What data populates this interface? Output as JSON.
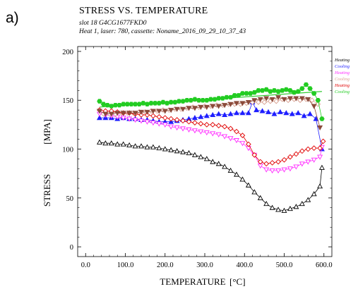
{
  "panel_label": "a)",
  "chart_data": {
    "type": "scatter",
    "title": "STRESS VS. TEMPERATURE",
    "subtitle_lines": [
      "slot 18 G4CG1677FKD0",
      "Heat 1, laser: 780, cassette: Noname_2016_09_29_10_37_43"
    ],
    "xlabel": "TEMPERATURE",
    "xunit": "[°C]",
    "ylabel": "STRESS",
    "yunit": "[MPA]",
    "xlim": [
      -20,
      620
    ],
    "ylim": [
      -10,
      205
    ],
    "xticks": [
      0,
      100,
      200,
      300,
      400,
      500,
      600
    ],
    "xtick_labels": [
      "0.0",
      "100.0",
      "200.0",
      "300.0",
      "400.0",
      "500.0",
      "600.0"
    ],
    "yticks": [
      0,
      50,
      100,
      150,
      200
    ],
    "ytick_labels": [
      "0",
      "50",
      "100",
      "150",
      "200"
    ],
    "grid": false,
    "legend_position": "right",
    "series": [
      {
        "name": "Heating",
        "color": "#000000",
        "marker": "triangle-up-open",
        "x": [
          35,
          50,
          65,
          80,
          95,
          110,
          125,
          140,
          155,
          170,
          185,
          200,
          215,
          230,
          245,
          260,
          275,
          290,
          305,
          320,
          335,
          350,
          365,
          380,
          395,
          410,
          425,
          440,
          455,
          470,
          485,
          500,
          515,
          530,
          545,
          560,
          575,
          590,
          595
        ],
        "y": [
          107,
          106,
          106,
          105,
          105,
          104,
          103,
          103,
          102,
          102,
          101,
          100,
          99,
          98,
          97,
          96,
          94,
          92,
          90,
          87,
          85,
          82,
          78,
          74,
          69,
          63,
          56,
          50,
          44,
          40,
          38,
          37,
          39,
          41,
          44,
          48,
          54,
          62,
          81
        ]
      },
      {
        "name": "Cooling",
        "color": "#1e1eff",
        "marker": "triangle-up-filled",
        "x": [
          595,
          580,
          565,
          550,
          535,
          520,
          505,
          490,
          475,
          460,
          445,
          430,
          420,
          410,
          395,
          380,
          365,
          350,
          335,
          320,
          305,
          290,
          275,
          260,
          245,
          230,
          215,
          200,
          185,
          170,
          155,
          140,
          125,
          110,
          95,
          80,
          65,
          50,
          35
        ],
        "y": [
          100,
          131,
          136,
          134,
          137,
          136,
          137,
          138,
          136,
          138,
          139,
          140,
          148,
          137,
          137,
          137,
          136,
          135,
          136,
          135,
          134,
          133,
          132,
          131,
          130,
          129,
          128,
          128,
          128,
          129,
          130,
          130,
          131,
          131,
          132,
          131,
          132,
          132,
          132
        ]
      },
      {
        "name": "Heating",
        "color": "#ff2bff",
        "marker": "triangle-down-open",
        "x": [
          35,
          50,
          65,
          80,
          95,
          110,
          125,
          140,
          155,
          170,
          185,
          200,
          215,
          230,
          245,
          260,
          275,
          290,
          305,
          320,
          335,
          350,
          365,
          380,
          395,
          410,
          425,
          440,
          455,
          470,
          485,
          500,
          515,
          530,
          545,
          560,
          575,
          590,
          595
        ],
        "y": [
          136,
          135,
          134,
          133,
          132,
          131,
          130,
          129,
          128,
          127,
          126,
          125,
          123,
          122,
          121,
          120,
          119,
          118,
          117,
          116,
          115,
          113,
          111,
          109,
          106,
          101,
          94,
          83,
          79,
          78,
          78,
          79,
          80,
          82,
          85,
          87,
          89,
          92,
          102
        ]
      },
      {
        "name": "Cooling",
        "color": "#d9a090",
        "marker": "diamond-open",
        "x": [
          585,
          570,
          555,
          540,
          525,
          510,
          495,
          480,
          465,
          450,
          435,
          420,
          405,
          390,
          375,
          360,
          345,
          330,
          315,
          300,
          285,
          270,
          255,
          240,
          225,
          210,
          195,
          180,
          165,
          150,
          135,
          120,
          105,
          90,
          75,
          60,
          45
        ],
        "y": [
          146,
          150,
          151,
          150,
          151,
          150,
          151,
          149,
          149,
          148,
          148,
          148,
          147,
          146,
          146,
          146,
          145,
          145,
          144,
          144,
          143,
          143,
          142,
          141,
          141,
          140,
          140,
          139,
          139,
          138,
          138,
          137,
          137,
          137,
          136,
          136,
          136
        ]
      },
      {
        "name": "Heating",
        "color": "#e00000",
        "marker": "diamond-open",
        "x": [
          35,
          50,
          65,
          80,
          95,
          110,
          125,
          140,
          155,
          170,
          185,
          200,
          215,
          230,
          245,
          260,
          275,
          290,
          305,
          320,
          335,
          350,
          365,
          380,
          395,
          410,
          425,
          440,
          455,
          470,
          485,
          500,
          515,
          530,
          545,
          560,
          575,
          590,
          598
        ],
        "y": [
          140,
          139,
          139,
          138,
          137,
          137,
          136,
          135,
          135,
          134,
          133,
          132,
          131,
          130,
          129,
          128,
          127,
          126,
          125,
          125,
          124,
          123,
          121,
          118,
          114,
          105,
          94,
          87,
          85,
          86,
          87,
          89,
          92,
          95,
          98,
          100,
          101,
          101,
          108
        ]
      },
      {
        "name": "Cooling",
        "color": "#22cc22",
        "marker": "hexagon-filled",
        "x": [
          595,
          585,
          575,
          565,
          555,
          545,
          535,
          525,
          515,
          505,
          495,
          485,
          475,
          465,
          455,
          445,
          435,
          425,
          415,
          405,
          395,
          385,
          375,
          365,
          355,
          345,
          335,
          325,
          315,
          305,
          295,
          285,
          275,
          265,
          255,
          245,
          235,
          225,
          215,
          205,
          195,
          185,
          175,
          165,
          155,
          145,
          135,
          125,
          115,
          105,
          95,
          85,
          75,
          65,
          55,
          45,
          35
        ],
        "y": [
          131,
          150,
          157,
          162,
          166,
          162,
          159,
          158,
          160,
          161,
          160,
          159,
          160,
          159,
          161,
          160,
          160,
          158,
          157,
          157,
          157,
          155,
          155,
          153,
          153,
          152,
          152,
          151,
          151,
          150,
          150,
          150,
          151,
          150,
          150,
          149,
          149,
          148,
          148,
          147,
          148,
          147,
          147,
          147,
          146,
          147,
          146,
          146,
          146,
          146,
          146,
          145,
          145,
          144,
          145,
          146,
          149
        ]
      },
      {
        "name": "",
        "color": "#8b4a3a",
        "marker": "triangle-down-filled",
        "x": [
          590,
          575,
          560,
          545,
          530,
          515,
          500,
          485,
          470,
          455,
          440,
          425,
          410,
          395,
          380,
          365,
          350,
          335,
          320,
          305,
          290,
          275,
          260,
          245,
          230,
          215,
          200,
          185,
          170,
          155,
          140,
          125,
          110,
          95,
          80,
          65,
          50,
          35
        ],
        "y": [
          122,
          144,
          151,
          152,
          152,
          152,
          151,
          153,
          151,
          152,
          151,
          150,
          148,
          147,
          147,
          146,
          145,
          144,
          144,
          143,
          143,
          142,
          142,
          141,
          141,
          140,
          139,
          139,
          139,
          138,
          138,
          137,
          137,
          137,
          137,
          136,
          136,
          139
        ]
      }
    ],
    "fit_line": {
      "color": "#33cc33",
      "x": [
        35,
        595
      ],
      "y": [
        143,
        159
      ]
    }
  }
}
